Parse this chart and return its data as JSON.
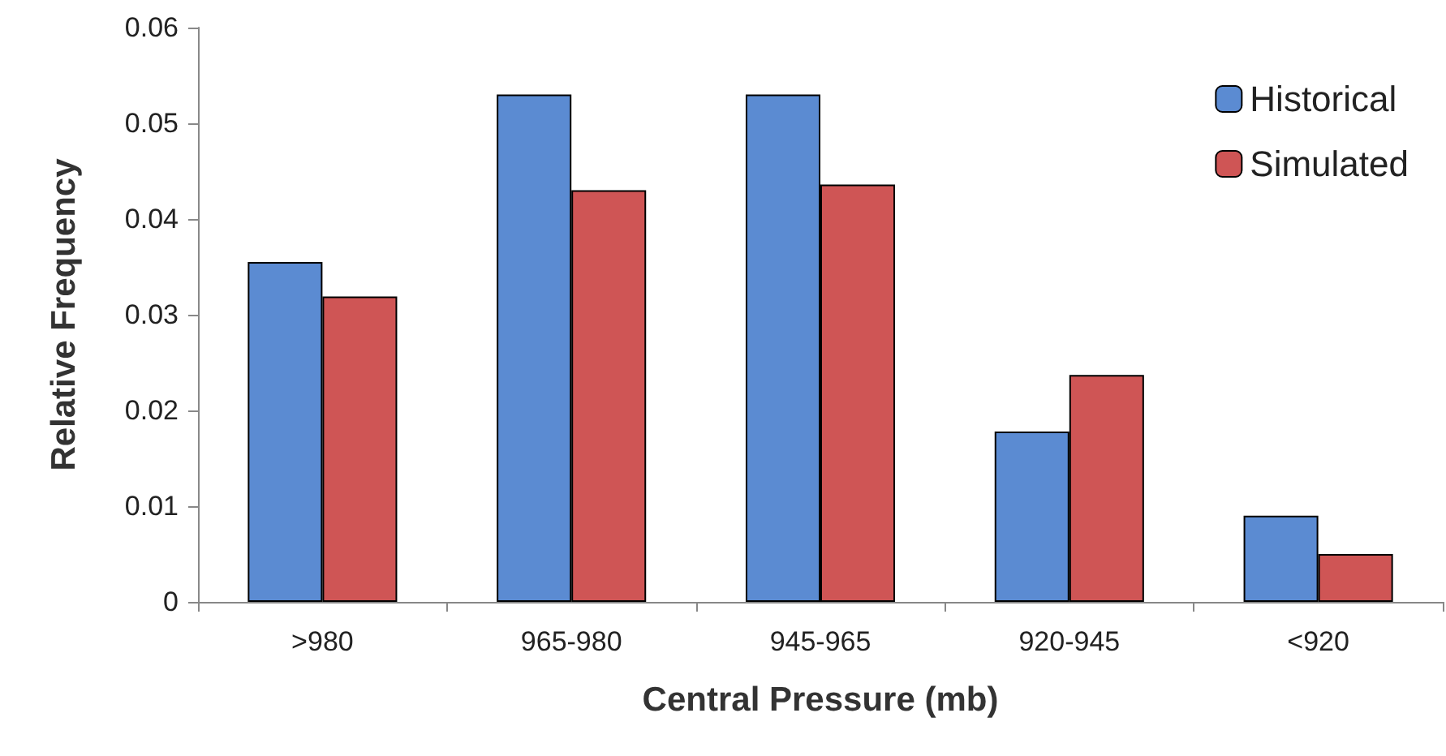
{
  "chart_data": {
    "type": "bar",
    "xlabel": "Central Pressure (mb)",
    "ylabel": "Relative Frequency",
    "categories": [
      ">980",
      "965-980",
      "945-965",
      "920-945",
      "<920"
    ],
    "series": [
      {
        "name": "Historical",
        "color": "#5b8bd2",
        "values": [
          0.0355,
          0.053,
          0.053,
          0.0178,
          0.009
        ]
      },
      {
        "name": "Simulated",
        "color": "#cf5555",
        "values": [
          0.0319,
          0.043,
          0.0436,
          0.0237,
          0.005
        ]
      }
    ],
    "ylim": [
      0,
      0.06
    ],
    "yticks": [
      0,
      0.01,
      0.02,
      0.03,
      0.04,
      0.05,
      0.06
    ],
    "grid": false,
    "legend": "top right"
  }
}
